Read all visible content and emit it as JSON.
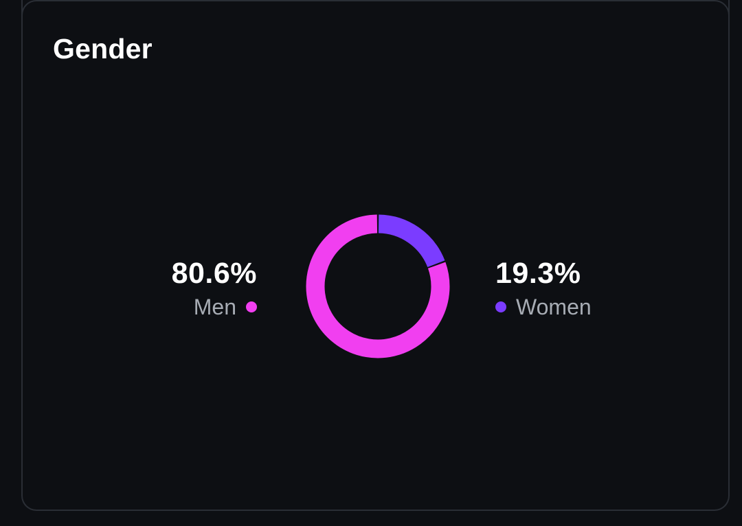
{
  "card": {
    "title": "Gender"
  },
  "colors": {
    "background": "#0d0f13",
    "border": "#2a2e35",
    "men": "#f13ff0",
    "women": "#7b3cff",
    "label": "#a7acb4"
  },
  "chart_data": {
    "type": "pie",
    "title": "Gender",
    "donut": true,
    "legend": "side-labels",
    "slices": [
      {
        "name": "Men",
        "value": 80.6,
        "display": "80.6%",
        "color": "#f13ff0"
      },
      {
        "name": "Women",
        "value": 19.3,
        "display": "19.3%",
        "color": "#7b3cff"
      }
    ]
  }
}
